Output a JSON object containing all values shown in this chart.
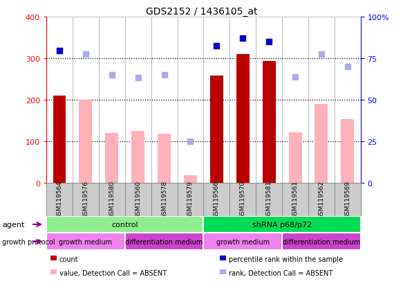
{
  "title": "GDS2152 / 1436105_at",
  "samples": [
    "GSM119564",
    "GSM119576",
    "GSM119580",
    "GSM119560",
    "GSM119578",
    "GSM119579",
    "GSM119566",
    "GSM119570",
    "GSM119581",
    "GSM119561",
    "GSM119562",
    "GSM119569"
  ],
  "count_values": [
    210,
    null,
    null,
    null,
    null,
    null,
    258,
    310,
    293,
    null,
    null,
    null
  ],
  "value_absent": [
    null,
    200,
    120,
    125,
    118,
    18,
    null,
    null,
    null,
    122,
    190,
    153
  ],
  "percentile_rank_left": [
    318,
    null,
    null,
    null,
    null,
    null,
    330,
    348,
    340,
    null,
    null,
    null
  ],
  "rank_absent_left": [
    null,
    310,
    260,
    253,
    260,
    100,
    null,
    null,
    null,
    255,
    310,
    280
  ],
  "ylim_left": [
    0,
    400
  ],
  "ylim_right": [
    0,
    100
  ],
  "yticks_left": [
    0,
    100,
    200,
    300,
    400
  ],
  "yticks_right": [
    0,
    25,
    50,
    75,
    100
  ],
  "ytick_right_labels": [
    "0",
    "25",
    "50",
    "75",
    "100%"
  ],
  "agent_groups": [
    {
      "label": "control",
      "start": 0,
      "end": 6,
      "color": "#90EE90"
    },
    {
      "label": "shRNA p68/p72",
      "start": 6,
      "end": 12,
      "color": "#00DD55"
    }
  ],
  "growth_groups": [
    {
      "label": "growth medium",
      "start": 0,
      "end": 3,
      "color": "#EE82EE"
    },
    {
      "label": "differentiation medium",
      "start": 3,
      "end": 6,
      "color": "#CC44CC"
    },
    {
      "label": "growth medium",
      "start": 6,
      "end": 9,
      "color": "#EE82EE"
    },
    {
      "label": "differentiation medium",
      "start": 9,
      "end": 12,
      "color": "#CC44CC"
    }
  ],
  "bar_color_dark_red": "#BB0000",
  "bar_color_light_pink": "#FFB0B8",
  "dot_color_dark_blue": "#0000CC",
  "dot_color_light_blue": "#AAAAEE",
  "sample_box_color": "#CCCCCC",
  "sample_box_edge": "#888888",
  "grid_dotted_color": "black",
  "title_fontsize": 10,
  "bar_width": 0.5,
  "dot_size": 6,
  "legend_items": [
    {
      "label": "count",
      "color": "#BB0000"
    },
    {
      "label": "percentile rank within the sample",
      "color": "#0000CC"
    },
    {
      "label": "value, Detection Call = ABSENT",
      "color": "#FFB0B8"
    },
    {
      "label": "rank, Detection Call = ABSENT",
      "color": "#AAAAEE"
    }
  ]
}
